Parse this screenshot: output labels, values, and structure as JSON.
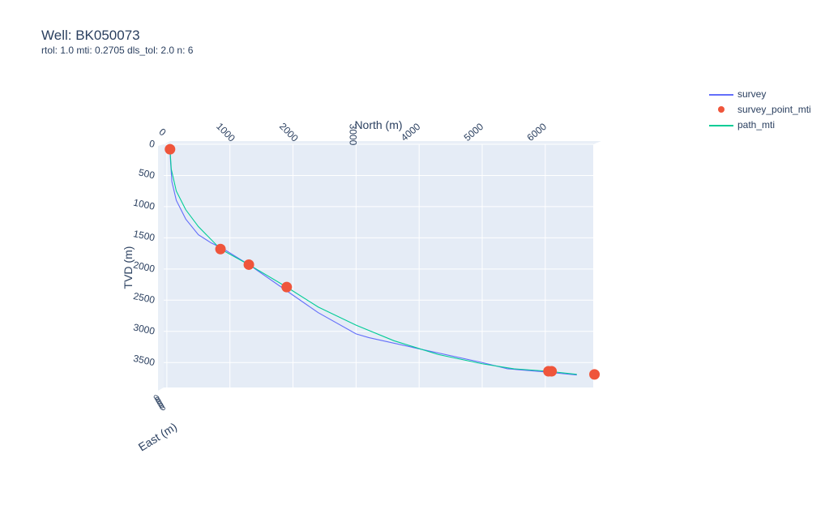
{
  "chart_data": {
    "type": "line",
    "title": "Well: BK050073",
    "subtitle": "rtol: 1.0 mti: 0.2705 dls_tol: 2.0 n: 6",
    "x_axis_label": "North (m)",
    "y_axis_label": "TVD (m)",
    "z_axis_label": "East (m)",
    "x_ticks": [
      "0",
      "1000",
      "2000",
      "3000",
      "4000",
      "5000",
      "6000"
    ],
    "y_ticks": [
      "0",
      "500",
      "1000",
      "1500",
      "2000",
      "2500",
      "3000",
      "3500"
    ],
    "z_ticks": [
      "0",
      "0",
      "0",
      "0",
      "0",
      "0"
    ],
    "xlim": [
      -50,
      6760
    ],
    "ylim": [
      0,
      3900
    ],
    "y_reversed": true,
    "grid": true,
    "legend_position": "top-right",
    "colors": {
      "survey": "#636efa",
      "survey_point_mti": "#ef553b",
      "path_mti": "#00cc96",
      "plot_bg": "#e5ecf6"
    },
    "series": [
      {
        "name": "survey",
        "mode": "line",
        "x": [
          50,
          60,
          80,
          150,
          300,
          500,
          700,
          900,
          1300,
          1800,
          2400,
          3000,
          3200,
          4000,
          5000,
          5400,
          6000,
          6500
        ],
        "y": [
          80,
          300,
          600,
          900,
          1200,
          1450,
          1580,
          1680,
          1930,
          2280,
          2700,
          3040,
          3100,
          3280,
          3500,
          3600,
          3650,
          3700
        ]
      },
      {
        "name": "survey_point_mti",
        "mode": "markers",
        "x": [
          50,
          850,
          1300,
          1900,
          6050,
          6100,
          6780
        ],
        "y": [
          80,
          1680,
          1930,
          2290,
          3640,
          3640,
          3690
        ]
      },
      {
        "name": "path_mti",
        "mode": "line",
        "x": [
          50,
          70,
          150,
          300,
          500,
          850,
          1300,
          1900,
          2400,
          3000,
          3600,
          4300,
          5000,
          5500,
          6050,
          6500
        ],
        "y": [
          80,
          400,
          750,
          1050,
          1320,
          1680,
          1930,
          2290,
          2610,
          2900,
          3150,
          3370,
          3520,
          3600,
          3640,
          3690
        ]
      }
    ]
  }
}
